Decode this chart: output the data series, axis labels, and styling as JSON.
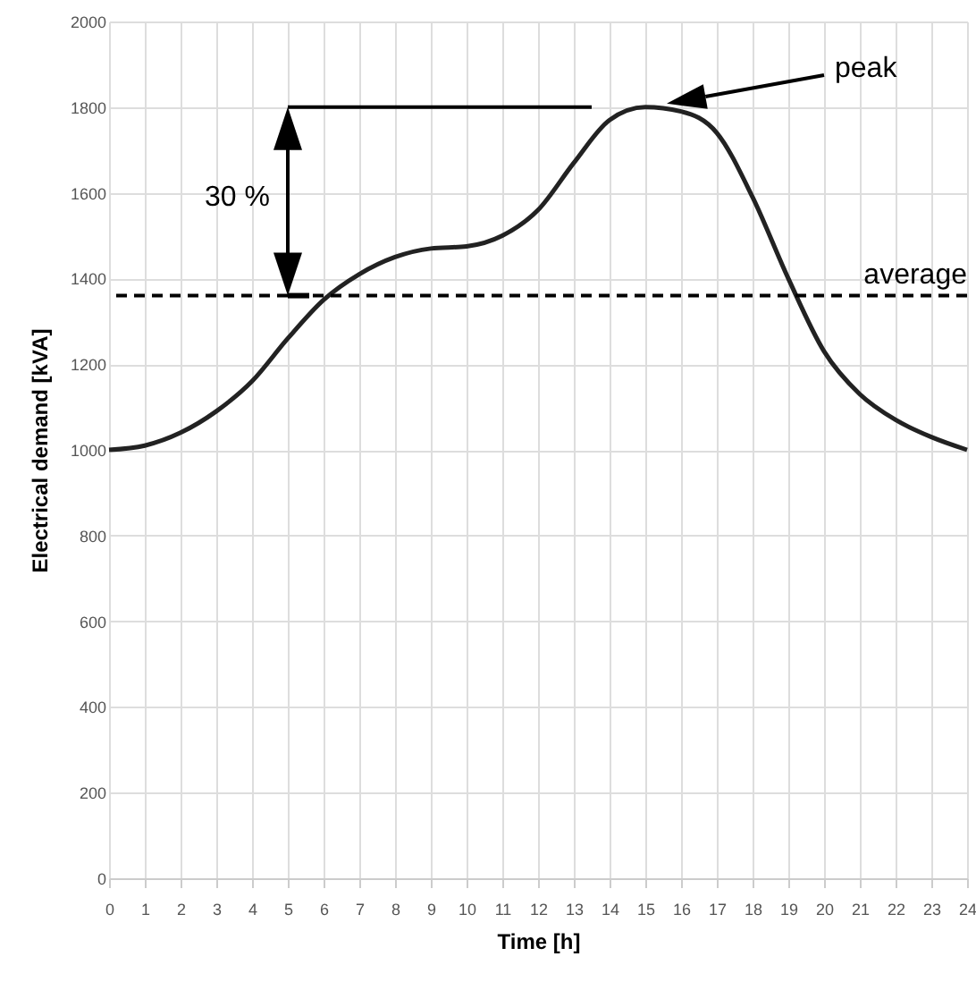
{
  "chart_data": {
    "type": "line",
    "xlabel": "Time [h]",
    "ylabel": "Electrical demand [kVA]",
    "x": [
      0,
      1,
      2,
      3,
      4,
      5,
      6,
      7,
      8,
      9,
      10,
      11,
      12,
      13,
      14,
      15,
      16,
      17,
      18,
      19,
      20,
      21,
      22,
      23,
      24
    ],
    "series": [
      {
        "color": "#222222",
        "values": [
          1000,
          1010,
          1040,
          1090,
          1160,
          1260,
          1350,
          1410,
          1450,
          1470,
          1475,
          1500,
          1560,
          1670,
          1770,
          1800,
          1790,
          1740,
          1590,
          1400,
          1230,
          1130,
          1070,
          1030,
          1000
        ]
      }
    ],
    "xlim": [
      0,
      24
    ],
    "xticks": [
      0,
      1,
      2,
      3,
      4,
      5,
      6,
      7,
      8,
      9,
      10,
      11,
      12,
      13,
      14,
      15,
      16,
      17,
      18,
      19,
      20,
      21,
      22,
      23,
      24
    ],
    "ylim": [
      0,
      2000
    ],
    "yticks": [
      0,
      200,
      400,
      600,
      800,
      1000,
      1200,
      1400,
      1600,
      1800,
      2000
    ],
    "grid": true,
    "marker": "none",
    "line_style": "solid",
    "ref_lines": [
      {
        "axis": "y",
        "value": 1360,
        "label": "average",
        "line_style": "dashed",
        "color": "#000000"
      }
    ],
    "annotations": [
      "peak",
      "30 %"
    ]
  }
}
